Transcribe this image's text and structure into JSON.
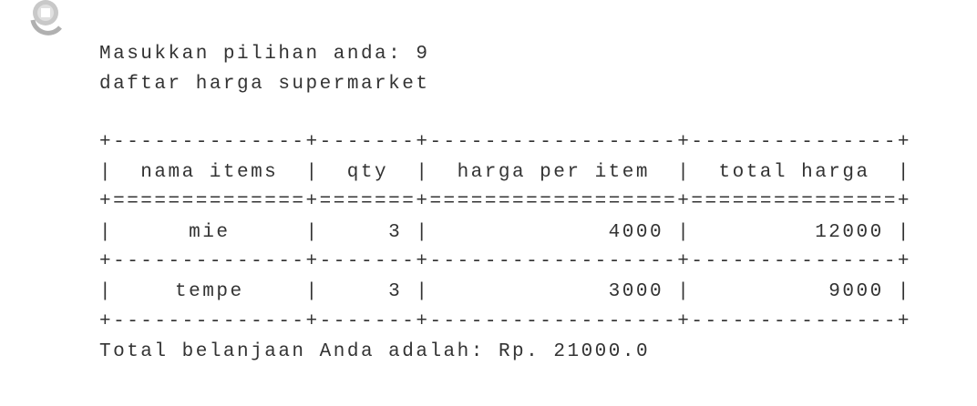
{
  "output": {
    "lines": [
      "Masukkan pilihan anda: 9",
      "daftar harga supermarket"
    ],
    "table": {
      "headers": [
        "nama items",
        "qty",
        "harga per item",
        "total harga"
      ],
      "rows": [
        [
          "mie",
          3,
          4000,
          12000
        ],
        [
          "tempe",
          3,
          3000,
          9000
        ]
      ]
    },
    "footer": "Total belanjaan Anda adalah: Rp. 21000.0"
  }
}
